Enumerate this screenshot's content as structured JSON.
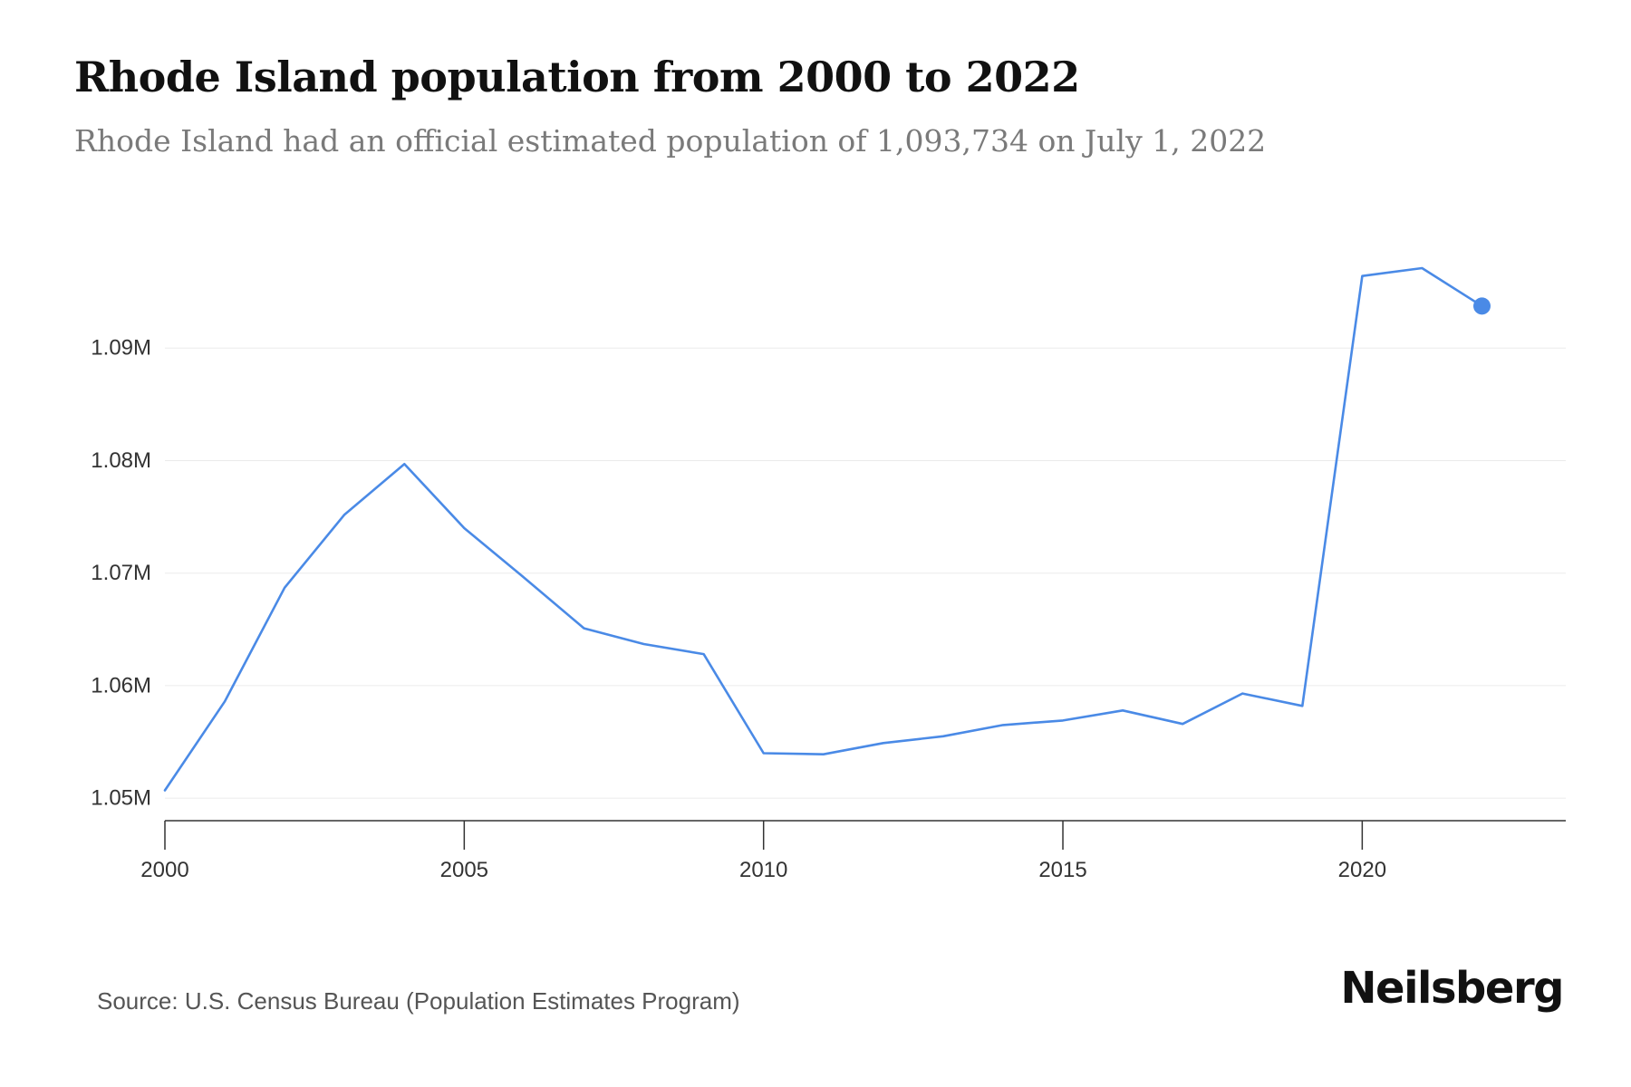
{
  "chart_data": {
    "type": "line",
    "title": "Rhode Island population from 2000 to 2022",
    "subtitle": "Rhode Island had an official estimated population of 1,093,734 on July 1, 2022",
    "xlabel": "",
    "ylabel": "",
    "x": [
      2000,
      2001,
      2002,
      2003,
      2004,
      2005,
      2006,
      2007,
      2008,
      2009,
      2010,
      2011,
      2012,
      2013,
      2014,
      2015,
      2016,
      2017,
      2018,
      2019,
      2020,
      2021,
      2022
    ],
    "series": [
      {
        "name": "Population",
        "values": [
          1050700,
          1058600,
          1068700,
          1075200,
          1079700,
          1074000,
          1069600,
          1065100,
          1063700,
          1062800,
          1054000,
          1053900,
          1054900,
          1055500,
          1056500,
          1056900,
          1057800,
          1056600,
          1059300,
          1058200,
          1096400,
          1097100,
          1093734
        ],
        "color": "#4a8ae6"
      }
    ],
    "xticks": [
      2000,
      2005,
      2010,
      2015,
      2020
    ],
    "yticks": [
      1050000,
      1060000,
      1070000,
      1080000,
      1090000
    ],
    "ytick_labels": [
      "1.05M",
      "1.06M",
      "1.07M",
      "1.08M",
      "1.09M"
    ],
    "xlim": [
      2000,
      2023.4
    ],
    "ylim": [
      1048000,
      1100000
    ],
    "grid": true,
    "highlight_last_point": true
  },
  "source": "Source: U.S. Census Bureau (Population Estimates Program)",
  "brand": "Neilsberg"
}
